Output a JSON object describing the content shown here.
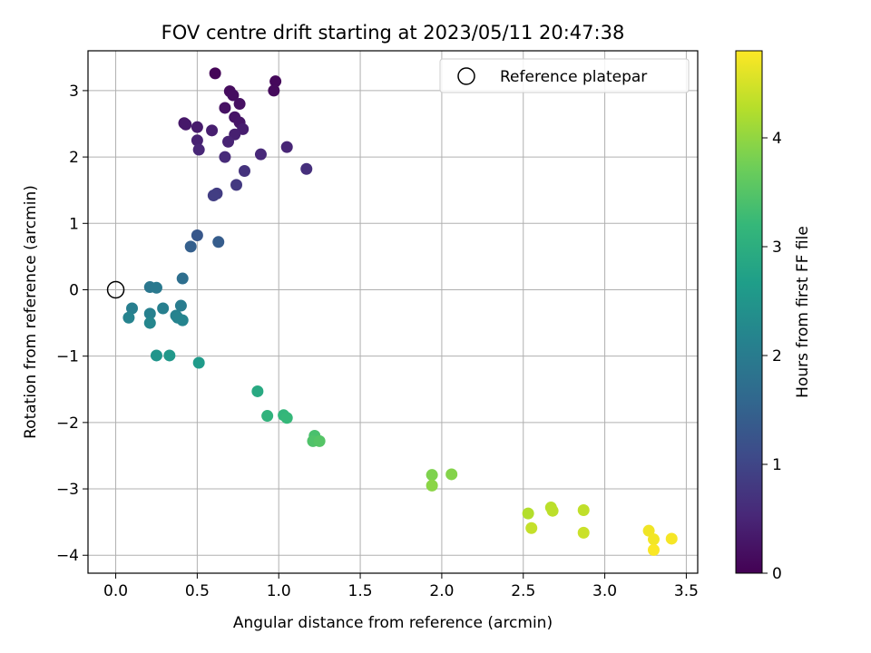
{
  "chart_data": {
    "type": "scatter",
    "title": "FOV centre drift starting at 2023/05/11 20:47:38",
    "xlabel": "Angular distance from reference (arcmin)",
    "ylabel": "Rotation from reference (arcmin)",
    "xlim": [
      -0.17,
      3.57
    ],
    "ylim": [
      -4.27,
      3.6
    ],
    "xticks": [
      0.0,
      0.5,
      1.0,
      1.5,
      2.0,
      2.5,
      3.0,
      3.5
    ],
    "xtick_labels": [
      "0.0",
      "0.5",
      "1.0",
      "1.5",
      "2.0",
      "2.5",
      "3.0",
      "3.5"
    ],
    "yticks": [
      -4,
      -3,
      -2,
      -1,
      0,
      1,
      2,
      3
    ],
    "ytick_labels": [
      "−4",
      "−3",
      "−2",
      "−1",
      "0",
      "1",
      "2",
      "3"
    ],
    "grid": true,
    "legend": {
      "placement": "top-right",
      "entries": [
        "Reference platepar"
      ]
    },
    "reference_point": {
      "x": 0.0,
      "y": 0.0
    },
    "colorbar": {
      "label": "Hours from first FF file",
      "colormap": "viridis",
      "range": [
        0,
        4.8
      ],
      "ticks": [
        0,
        1,
        2,
        3,
        4
      ],
      "tick_labels": [
        "0",
        "1",
        "2",
        "3",
        "4"
      ]
    },
    "points": [
      {
        "x": 0.61,
        "y": 3.26,
        "c": 0.05
      },
      {
        "x": 0.98,
        "y": 3.14,
        "c": 0.1
      },
      {
        "x": 0.97,
        "y": 3.0,
        "c": 0.12
      },
      {
        "x": 0.7,
        "y": 2.99,
        "c": 0.15
      },
      {
        "x": 0.72,
        "y": 2.93,
        "c": 0.18
      },
      {
        "x": 0.76,
        "y": 2.8,
        "c": 0.2
      },
      {
        "x": 0.67,
        "y": 2.74,
        "c": 0.22
      },
      {
        "x": 0.73,
        "y": 2.6,
        "c": 0.25
      },
      {
        "x": 0.76,
        "y": 2.52,
        "c": 0.28
      },
      {
        "x": 0.42,
        "y": 2.51,
        "c": 0.3
      },
      {
        "x": 0.43,
        "y": 2.49,
        "c": 0.32
      },
      {
        "x": 0.5,
        "y": 2.45,
        "c": 0.35
      },
      {
        "x": 0.78,
        "y": 2.42,
        "c": 0.38
      },
      {
        "x": 0.59,
        "y": 2.4,
        "c": 0.4
      },
      {
        "x": 0.73,
        "y": 2.34,
        "c": 0.42
      },
      {
        "x": 0.5,
        "y": 2.25,
        "c": 0.45
      },
      {
        "x": 0.69,
        "y": 2.23,
        "c": 0.48
      },
      {
        "x": 1.05,
        "y": 2.15,
        "c": 0.5
      },
      {
        "x": 0.51,
        "y": 2.11,
        "c": 0.52
      },
      {
        "x": 0.89,
        "y": 2.04,
        "c": 0.55
      },
      {
        "x": 0.67,
        "y": 2.0,
        "c": 0.58
      },
      {
        "x": 1.17,
        "y": 1.82,
        "c": 0.65
      },
      {
        "x": 0.79,
        "y": 1.79,
        "c": 0.7
      },
      {
        "x": 0.74,
        "y": 1.58,
        "c": 0.8
      },
      {
        "x": 0.62,
        "y": 1.45,
        "c": 0.85
      },
      {
        "x": 0.6,
        "y": 1.42,
        "c": 0.88
      },
      {
        "x": 0.5,
        "y": 0.82,
        "c": 1.3
      },
      {
        "x": 0.63,
        "y": 0.72,
        "c": 1.4
      },
      {
        "x": 0.46,
        "y": 0.65,
        "c": 1.45
      },
      {
        "x": 0.41,
        "y": 0.17,
        "c": 1.75
      },
      {
        "x": 0.21,
        "y": 0.04,
        "c": 1.9
      },
      {
        "x": 0.25,
        "y": 0.03,
        "c": 1.95
      },
      {
        "x": 0.4,
        "y": -0.24,
        "c": 2.0
      },
      {
        "x": 0.1,
        "y": -0.28,
        "c": 2.05
      },
      {
        "x": 0.29,
        "y": -0.28,
        "c": 2.08
      },
      {
        "x": 0.21,
        "y": -0.36,
        "c": 2.1
      },
      {
        "x": 0.37,
        "y": -0.39,
        "c": 2.12
      },
      {
        "x": 0.38,
        "y": -0.42,
        "c": 2.15
      },
      {
        "x": 0.08,
        "y": -0.42,
        "c": 2.15
      },
      {
        "x": 0.41,
        "y": -0.46,
        "c": 2.18
      },
      {
        "x": 0.21,
        "y": -0.5,
        "c": 2.2
      },
      {
        "x": 0.25,
        "y": -0.99,
        "c": 2.5
      },
      {
        "x": 0.33,
        "y": -0.99,
        "c": 2.55
      },
      {
        "x": 0.51,
        "y": -1.1,
        "c": 2.6
      },
      {
        "x": 0.87,
        "y": -1.53,
        "c": 2.9
      },
      {
        "x": 0.93,
        "y": -1.9,
        "c": 3.1
      },
      {
        "x": 1.03,
        "y": -1.89,
        "c": 3.15
      },
      {
        "x": 1.05,
        "y": -1.93,
        "c": 3.2
      },
      {
        "x": 1.22,
        "y": -2.2,
        "c": 3.4
      },
      {
        "x": 1.21,
        "y": -2.28,
        "c": 3.45
      },
      {
        "x": 1.25,
        "y": -2.28,
        "c": 3.5
      },
      {
        "x": 1.94,
        "y": -2.79,
        "c": 3.85
      },
      {
        "x": 2.06,
        "y": -2.78,
        "c": 3.9
      },
      {
        "x": 1.94,
        "y": -2.95,
        "c": 3.95
      },
      {
        "x": 2.53,
        "y": -3.37,
        "c": 4.25
      },
      {
        "x": 2.67,
        "y": -3.28,
        "c": 4.3
      },
      {
        "x": 2.68,
        "y": -3.33,
        "c": 4.32
      },
      {
        "x": 2.87,
        "y": -3.32,
        "c": 4.35
      },
      {
        "x": 2.55,
        "y": -3.59,
        "c": 4.38
      },
      {
        "x": 2.87,
        "y": -3.66,
        "c": 4.42
      },
      {
        "x": 3.27,
        "y": -3.63,
        "c": 4.7
      },
      {
        "x": 3.3,
        "y": -3.76,
        "c": 4.72
      },
      {
        "x": 3.41,
        "y": -3.75,
        "c": 4.75
      },
      {
        "x": 3.3,
        "y": -3.92,
        "c": 4.78
      }
    ]
  }
}
